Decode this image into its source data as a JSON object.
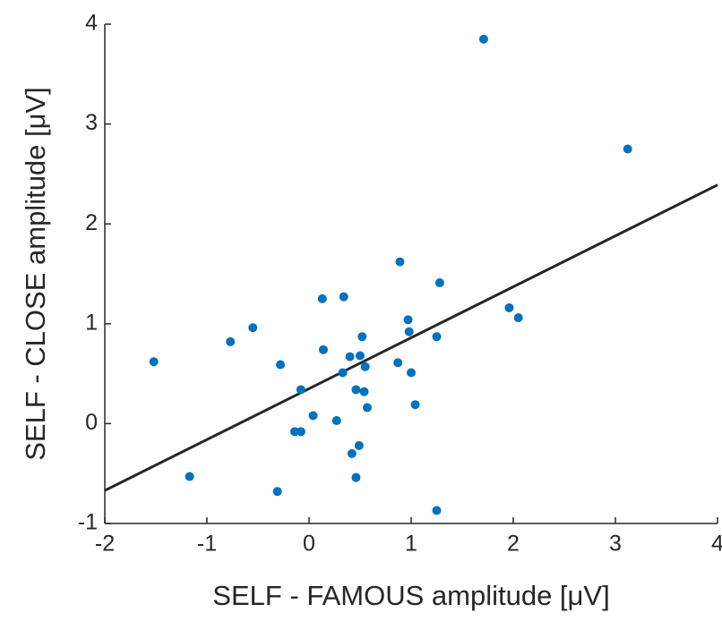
{
  "chart_data": {
    "type": "scatter",
    "xlabel": "SELF - FAMOUS amplitude [μV]",
    "ylabel": "SELF - CLOSE amplitude [μV]",
    "xlim": [
      -2,
      4
    ],
    "ylim": [
      -1,
      4
    ],
    "xticks": [
      -2,
      -1,
      0,
      1,
      2,
      3,
      4
    ],
    "yticks": [
      -1,
      0,
      1,
      2,
      3,
      4
    ],
    "series": [
      {
        "color": "#0072bd",
        "x": [
          1.71,
          3.12,
          -1.52,
          -1.17,
          -0.77,
          -0.55,
          -0.28,
          -0.31,
          -0.08,
          -0.14,
          -0.08,
          0.04,
          0.13,
          0.14,
          0.34,
          0.33,
          0.27,
          0.4,
          0.42,
          0.46,
          0.46,
          0.49,
          0.5,
          0.52,
          0.54,
          0.55,
          0.57,
          0.89,
          0.87,
          0.97,
          0.98,
          1.0,
          1.04,
          1.28,
          1.25,
          1.25,
          1.96,
          2.05
        ],
        "values": [
          3.85,
          2.75,
          0.62,
          -0.53,
          0.82,
          0.96,
          0.59,
          -0.68,
          0.34,
          -0.08,
          -0.08,
          0.08,
          1.25,
          0.74,
          1.27,
          0.51,
          0.03,
          0.67,
          -0.3,
          0.34,
          -0.54,
          -0.22,
          0.68,
          0.87,
          0.32,
          0.57,
          0.16,
          1.62,
          0.61,
          1.04,
          0.92,
          0.51,
          0.19,
          1.41,
          0.87,
          -0.87,
          1.16,
          1.06
        ]
      }
    ],
    "fit_line": {
      "color": "#262626",
      "x": [
        -2,
        4
      ],
      "values": [
        -0.67,
        2.39
      ]
    }
  }
}
